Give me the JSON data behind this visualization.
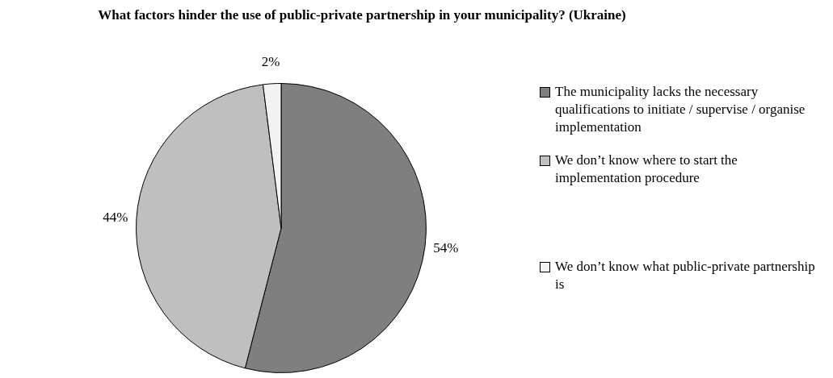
{
  "chart_data": {
    "type": "pie",
    "title": "What factors hinder the use of public-private partnership in your municipality? (Ukraine)",
    "categories": [
      "The municipality lacks the necessary qualifications to initiate / supervise / organise implementation",
      "We don’t know where to start the implementation procedure",
      "We don’t know what public-private partnership is"
    ],
    "values": [
      54,
      44,
      2
    ],
    "value_labels": [
      "54%",
      "44%",
      "2%"
    ],
    "colors": [
      "#7f7f7f",
      "#bfbfbf",
      "#f2f2f2"
    ],
    "legend": "right"
  }
}
